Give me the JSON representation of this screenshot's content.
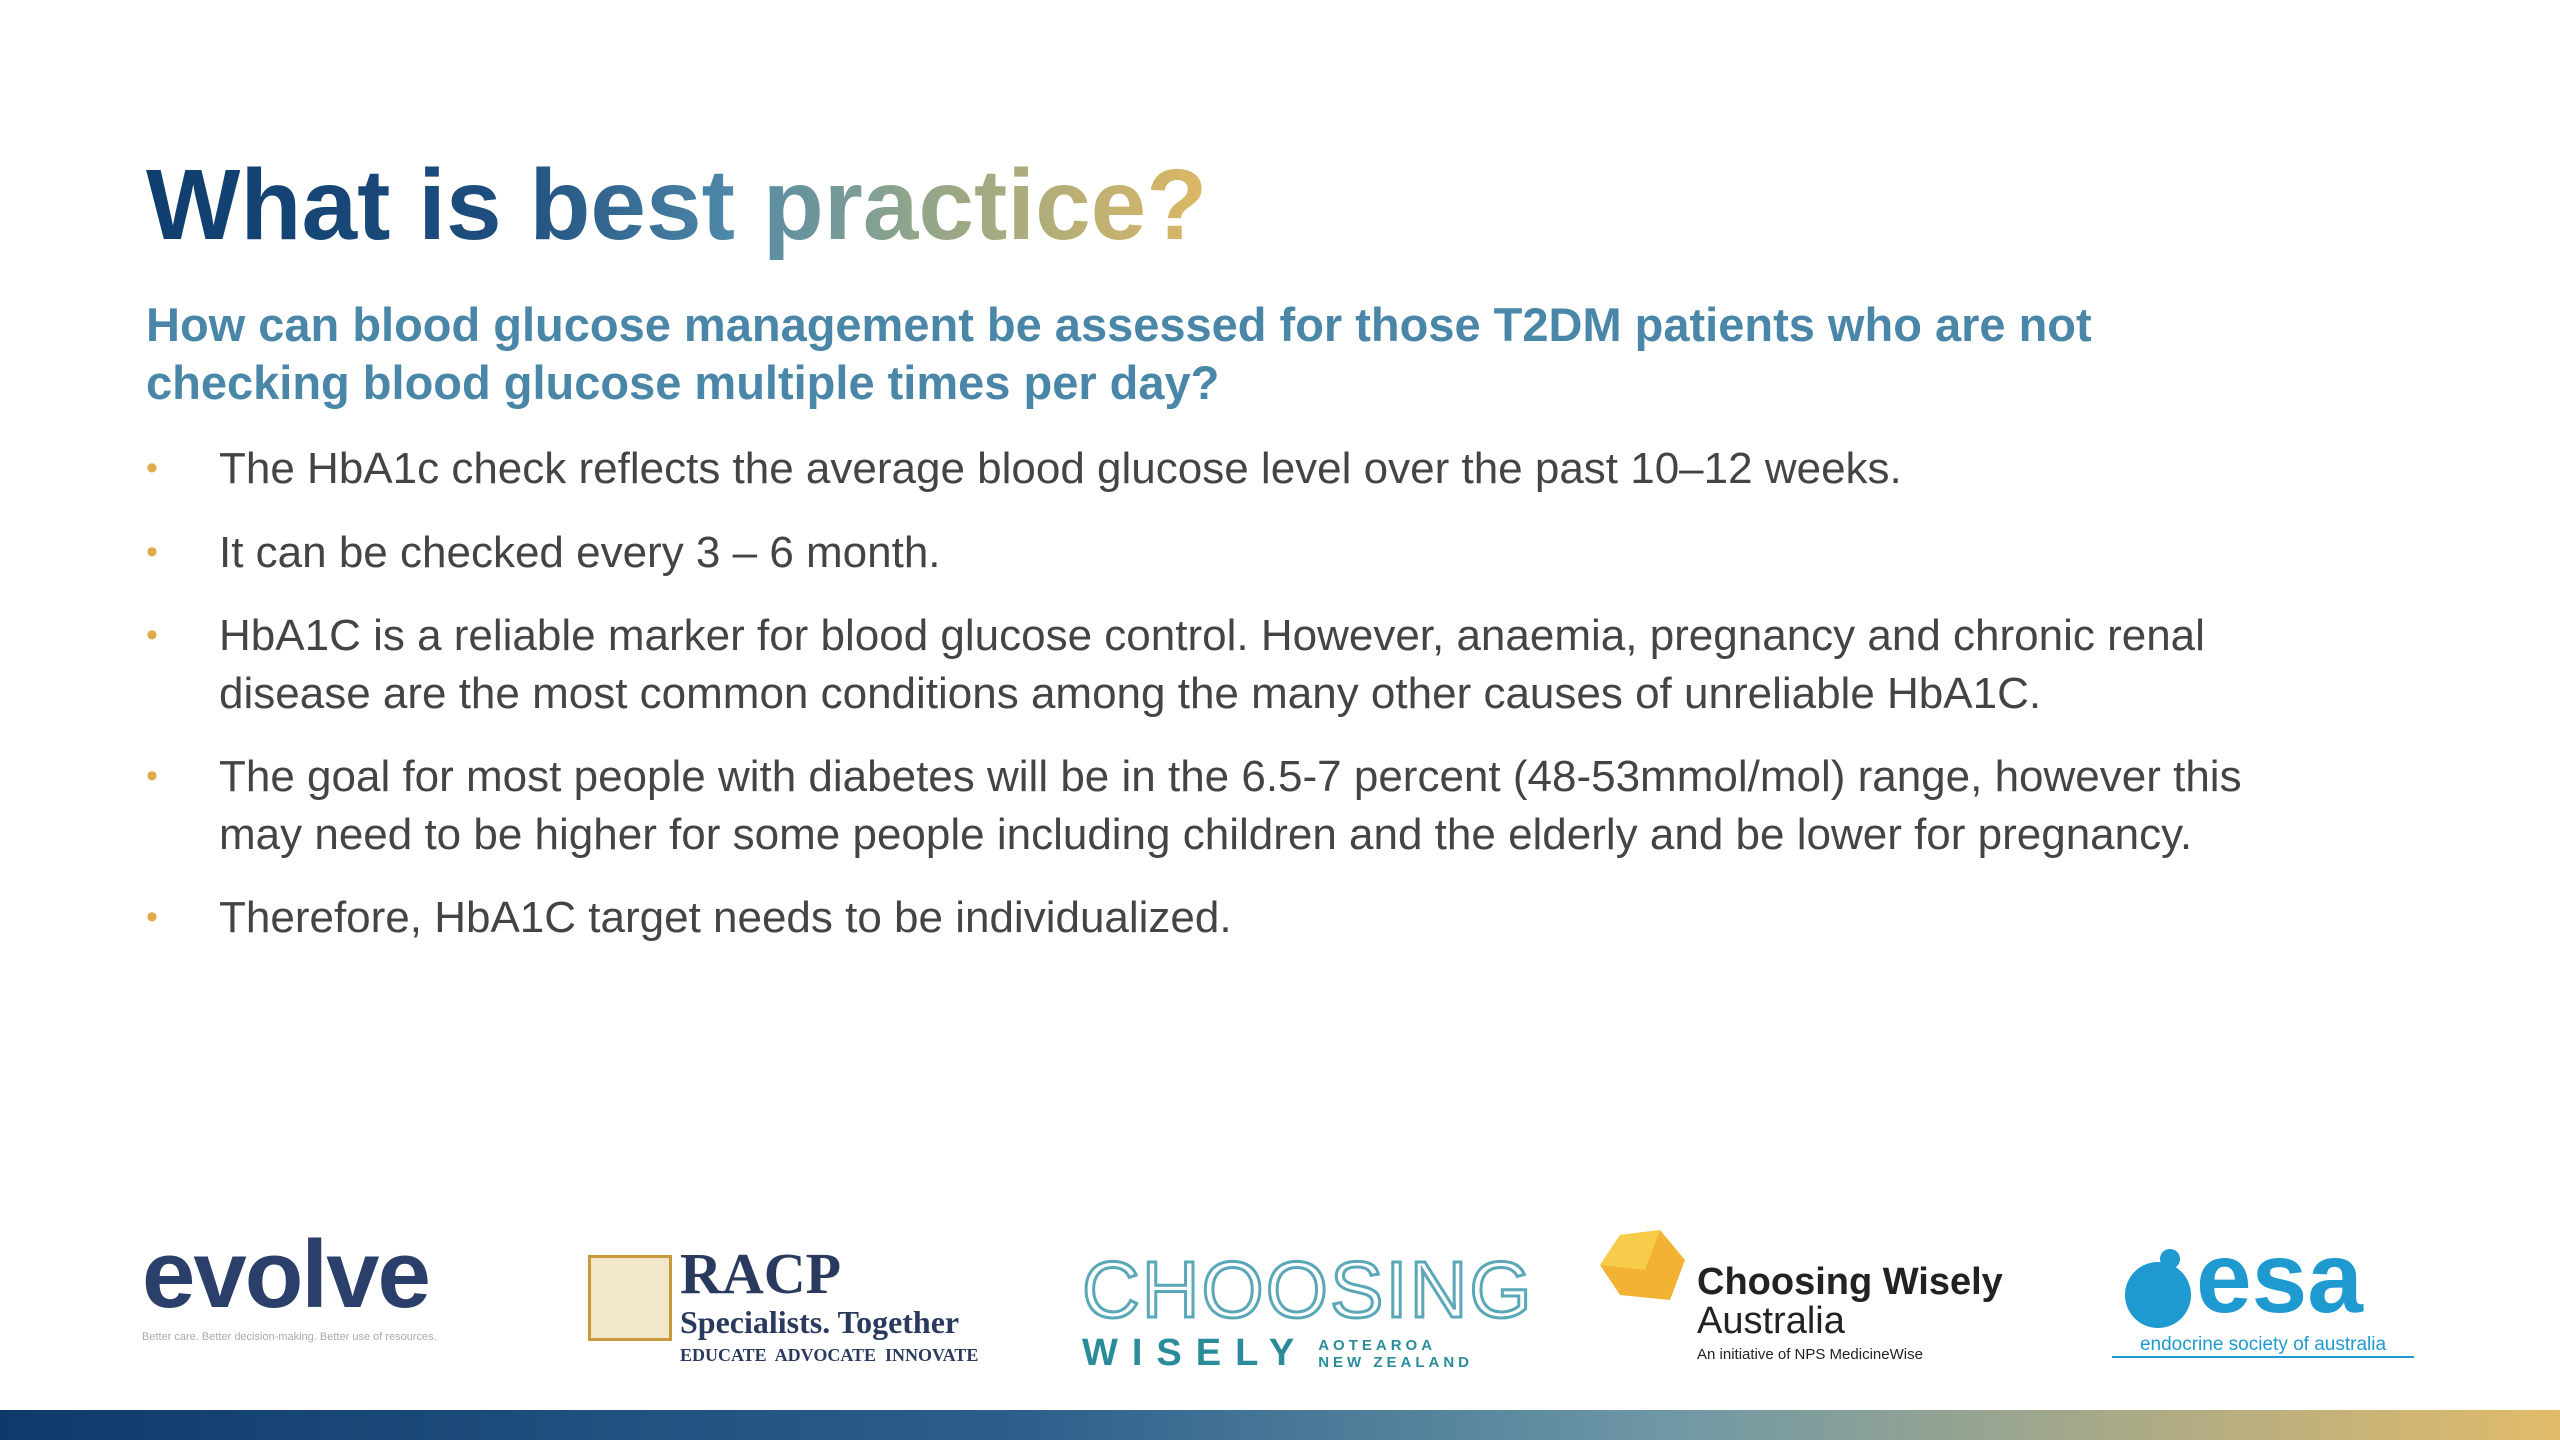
{
  "header": {
    "title": "What is best practice?",
    "subtitle": "How can blood glucose management be assessed for those T2DM patients who are not checking blood glucose multiple times per day?"
  },
  "bullets": [
    "The HbA1c check reflects the average blood glucose level over the past 10–12 weeks.",
    "It can be checked every 3 – 6 month.",
    "HbA1C is a reliable marker for blood glucose control. However, anaemia, pregnancy and chronic renal disease are the most common conditions among the many other causes of unreliable HbA1C.",
    "The goal for most people with diabetes will be in the 6.5-7 percent (48-53mmol/mol) range, however this may need to be higher for some people including children and the elderly and be lower for pregnancy.",
    "Therefore, HbA1C target needs to be individualized."
  ],
  "logos": {
    "evolve": {
      "name": "evolve",
      "tagline": "Better care. Better decision-making. Better use of resources."
    },
    "racp": {
      "name": "RACP",
      "line1": "Specialists. Together",
      "line2": "EDUCATE  ADVOCATE  INNOVATE"
    },
    "cwnz": {
      "name": "CHOOSING",
      "line1": "WISELY",
      "line2": "AOTEAROA",
      "line3": "NEW ZEALAND"
    },
    "cwa": {
      "name": "Choosing Wisely",
      "line1": "Australia",
      "line2": "An initiative of NPS MedicineWise"
    },
    "esa": {
      "name": "esa",
      "line1": "endocrine society of australia"
    }
  }
}
